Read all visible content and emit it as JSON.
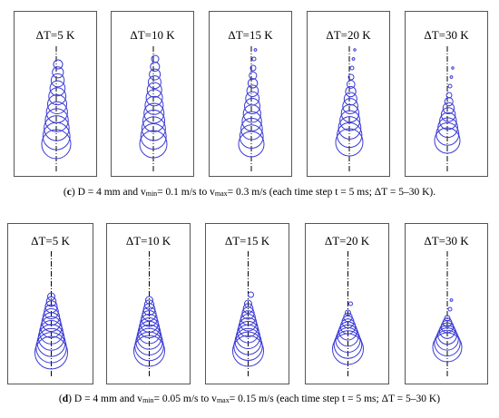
{
  "figure_c": {
    "panels": [
      {
        "label": "ΔT=5 K"
      },
      {
        "label": "ΔT=10 K"
      },
      {
        "label": "ΔT=15 K"
      },
      {
        "label": "ΔT=20 K"
      },
      {
        "label": "ΔT=30 K"
      }
    ],
    "caption": {
      "tag": "c",
      "pre": "D = 4 mm and v",
      "sub1": "min",
      "mid": "= 0.1 m/s to v",
      "sub2": "max",
      "post": "= 0.3 m/s (each time step t = 5 ms; ΔT = 5–30 K)."
    }
  },
  "figure_d": {
    "panels": [
      {
        "label": "ΔT=5 K"
      },
      {
        "label": "ΔT=10 K"
      },
      {
        "label": "ΔT=15 K"
      },
      {
        "label": "ΔT=20 K"
      },
      {
        "label": "ΔT=30 K"
      }
    ],
    "caption": {
      "tag": "d",
      "pre": "D = 4 mm and v",
      "sub1": "min",
      "mid": "= 0.05 m/s to v",
      "sub2": "max",
      "post": "= 0.15 m/s (each time step t = 5 ms; ΔT = 5–30 K)"
    }
  },
  "colors": {
    "bubble": "#3a3ad6",
    "axis": "#000000",
    "frame": "#555555"
  }
}
